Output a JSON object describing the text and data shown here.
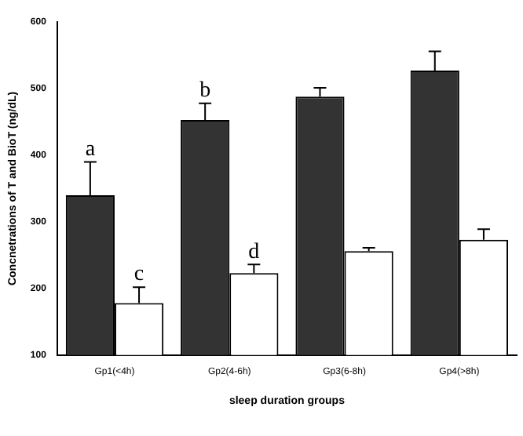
{
  "chart_data": {
    "type": "bar",
    "xlabel": "sleep duration groups",
    "ylabel": "Concnetrations of T and BioT (ng/dL)",
    "categories": [
      "Gp1(<4h)",
      "Gp2(4-6h)",
      "Gp3(6-8h)",
      "Gp4(>8h)"
    ],
    "series": [
      {
        "color": "#333333",
        "values": [
          340,
          453,
          488,
          527
        ],
        "errors": [
          50,
          25,
          13,
          29
        ]
      },
      {
        "color": "#ffffff",
        "values": [
          178,
          223,
          256,
          273
        ],
        "errors": [
          24,
          13,
          5,
          16
        ]
      }
    ],
    "ylim": [
      100,
      600
    ],
    "yticks": [
      100,
      200,
      300,
      400,
      500,
      600
    ],
    "grid": false,
    "legend": false,
    "annotations": [
      "a",
      "c",
      "b",
      "d"
    ]
  }
}
